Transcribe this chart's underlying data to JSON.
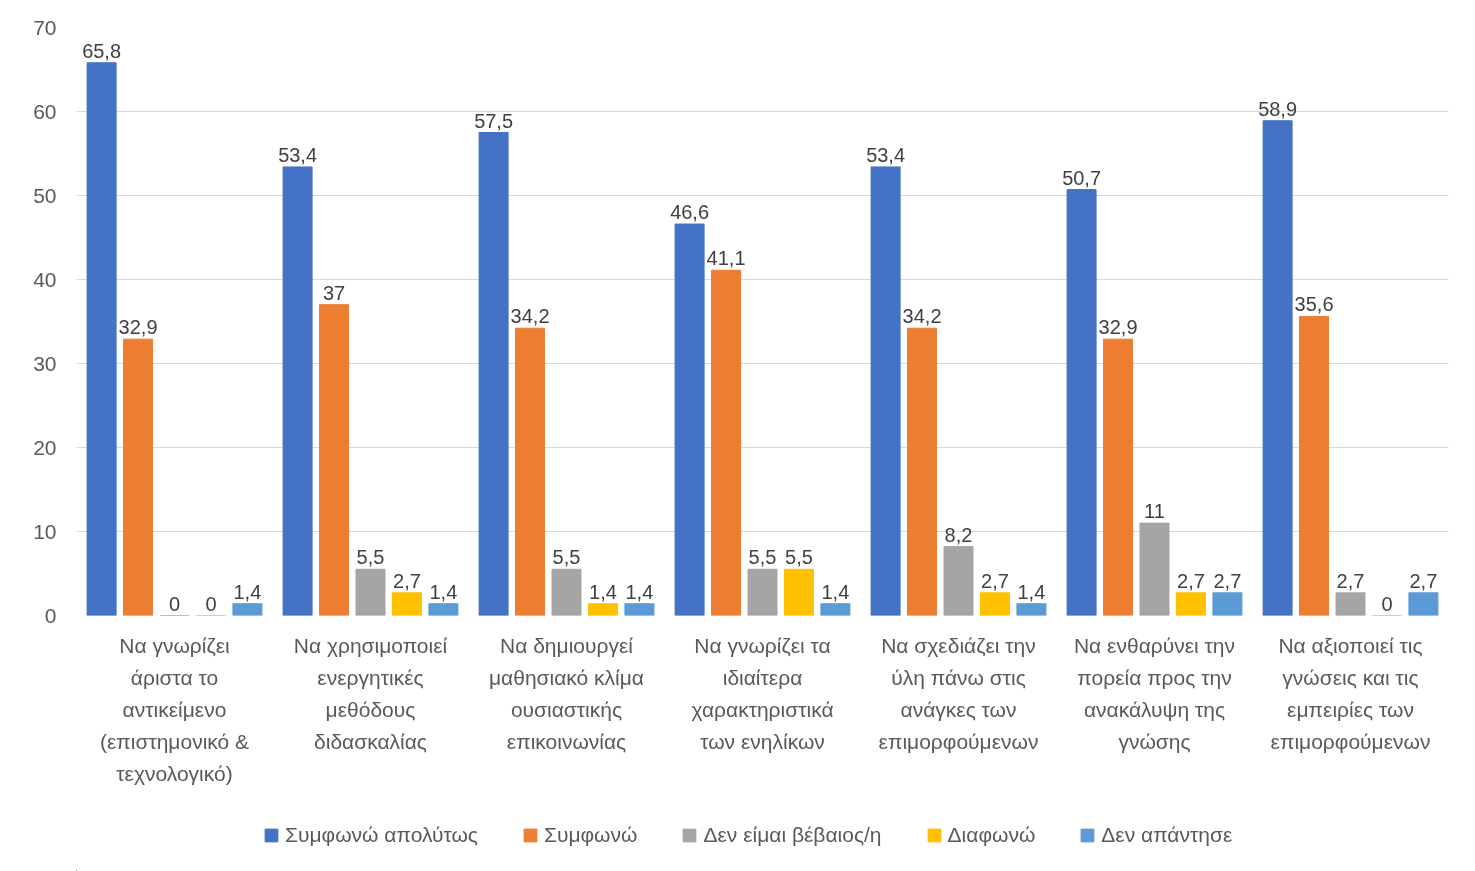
{
  "chart_data": {
    "type": "bar",
    "categories": [
      "Να γνωρίζει άριστα το αντικείμενο (επιστημονικό & τεχνολογικό)",
      "Να χρησιμοποιεί ενεργητικές μεθόδους διδασκαλίας",
      "Να δημιουργεί μαθησιακό κλίμα ουσιαστικής επικοινωνίας",
      "Να γνωρίζει τα ιδιαίτερα χαρακτηριστικά των ενηλίκων",
      "Να σχεδιάζει την ύλη πάνω στις ανάγκες των επιμορφούμενων",
      "Να ενθαρύνει την πορεία προς την ανακάλυψη της γνώσης",
      "Να αξιοποιεί τις γνώσεις και τις εμπειρίες των επιμορφούμενων"
    ],
    "series": [
      {
        "name": "Συμφωνώ απολύτως",
        "color": "#4472c4",
        "values": [
          65.8,
          53.4,
          57.5,
          46.6,
          53.4,
          50.7,
          58.9
        ],
        "value_labels": [
          "65,8",
          "53,4",
          "57,5",
          "46,6",
          "53,4",
          "50,7",
          "58,9"
        ]
      },
      {
        "name": "Συμφωνώ",
        "color": "#ed7d31",
        "values": [
          32.9,
          37,
          34.2,
          41.1,
          34.2,
          32.9,
          35.6
        ],
        "value_labels": [
          "32,9",
          "37",
          "34,2",
          "41,1",
          "34,2",
          "32,9",
          "35,6"
        ]
      },
      {
        "name": "Δεν είμαι βέβαιος/η",
        "color": "#a5a5a5",
        "values": [
          0,
          5.5,
          5.5,
          5.5,
          8.2,
          11,
          2.7
        ],
        "value_labels": [
          "0",
          "5,5",
          "5,5",
          "5,5",
          "8,2",
          "11",
          "2,7"
        ]
      },
      {
        "name": "Διαφωνώ",
        "color": "#ffc000",
        "values": [
          0,
          2.7,
          1.4,
          5.5,
          2.7,
          2.7,
          0
        ],
        "value_labels": [
          "0",
          "2,7",
          "1,4",
          "5,5",
          "2,7",
          "2,7",
          "0"
        ]
      },
      {
        "name": "Δεν απάντησε",
        "color": "#5b9bd5",
        "values": [
          1.4,
          1.4,
          1.4,
          1.4,
          1.4,
          2.7,
          2.7
        ],
        "value_labels": [
          "1,4",
          "1,4",
          "1,4",
          "1,4",
          "1,4",
          "2,7",
          "2,7"
        ]
      }
    ],
    "ylim": [
      0,
      70
    ],
    "yticks": [
      0,
      10,
      20,
      30,
      40,
      50,
      60,
      70
    ],
    "grid": "y",
    "legend": "bottom"
  }
}
